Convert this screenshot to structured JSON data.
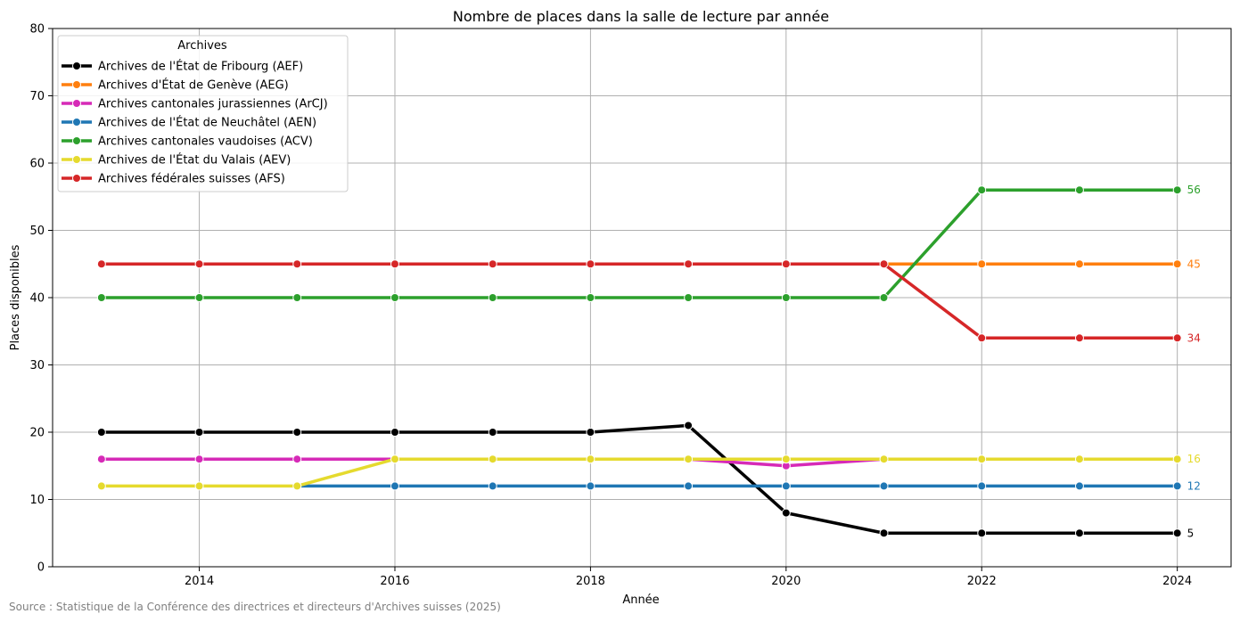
{
  "chart_data": {
    "type": "line",
    "title": "Nombre de places dans la salle de lecture par année",
    "xlabel": "Année",
    "ylabel": "Places disponibles",
    "x": [
      2013,
      2014,
      2015,
      2016,
      2017,
      2018,
      2019,
      2020,
      2021,
      2022,
      2023,
      2024
    ],
    "xlim": [
      2012.5,
      2024.55
    ],
    "ylim": [
      0,
      80
    ],
    "xticks": [
      2014,
      2016,
      2018,
      2020,
      2022,
      2024
    ],
    "yticks": [
      0,
      10,
      20,
      30,
      40,
      50,
      60,
      70,
      80
    ],
    "grid": true,
    "legend_title": "Archives",
    "legend_position": "top-left",
    "series": [
      {
        "name": "Archives de l'État de Fribourg (AEF)",
        "color": "#000000",
        "values": [
          20,
          20,
          20,
          20,
          20,
          20,
          21,
          8,
          5,
          5,
          5,
          5
        ]
      },
      {
        "name": "Archives d'État de Genève (AEG)",
        "color": "#ff7f0e",
        "values": [
          null,
          null,
          null,
          null,
          null,
          null,
          null,
          null,
          45,
          45,
          45,
          45
        ]
      },
      {
        "name": "Archives cantonales jurassiennes (ArCJ)",
        "color": "#d62ab7",
        "values": [
          16,
          16,
          16,
          16,
          16,
          16,
          16,
          15,
          16,
          16,
          16,
          16
        ]
      },
      {
        "name": "Archives de l'État de Neuchâtel (AEN)",
        "color": "#1f77b4",
        "values": [
          null,
          null,
          12,
          12,
          12,
          12,
          12,
          12,
          12,
          12,
          12,
          12
        ]
      },
      {
        "name": "Archives cantonales vaudoises (ACV)",
        "color": "#2ca02c",
        "values": [
          40,
          40,
          40,
          40,
          40,
          40,
          40,
          40,
          40,
          56,
          56,
          56
        ]
      },
      {
        "name": "Archives de l'État du Valais (AEV)",
        "color": "#e5da2e",
        "values": [
          12,
          12,
          12,
          16,
          16,
          16,
          16,
          16,
          16,
          16,
          16,
          16
        ]
      },
      {
        "name": "Archives fédérales suisses (AFS)",
        "color": "#d62728",
        "values": [
          45,
          45,
          45,
          45,
          45,
          45,
          45,
          45,
          45,
          34,
          34,
          34
        ]
      }
    ],
    "end_labels": [
      {
        "text": "56",
        "value": 56,
        "color": "#2ca02c"
      },
      {
        "text": "45",
        "value": 45,
        "color": "#ff7f0e"
      },
      {
        "text": "34",
        "value": 34,
        "color": "#d62728"
      },
      {
        "text": "16",
        "value": 16,
        "color": "#e5da2e"
      },
      {
        "text": "12",
        "value": 12,
        "color": "#1f77b4"
      },
      {
        "text": "5",
        "value": 5,
        "color": "#000000"
      }
    ],
    "source": "Source : Statistique de la Conférence des directrices et directeurs d'Archives suisses (2025)"
  }
}
